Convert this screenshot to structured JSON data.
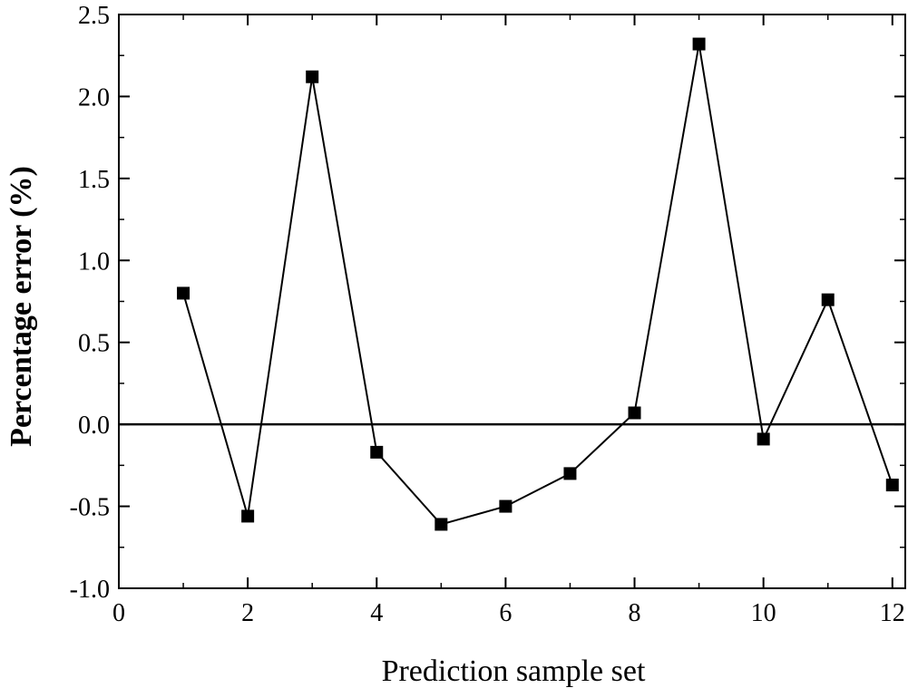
{
  "chart_data": {
    "type": "line",
    "title": "",
    "xlabel": "Prediction sample set",
    "ylabel": "Percentage error (%)",
    "xlim": [
      0,
      12.2
    ],
    "ylim": [
      -1.0,
      2.5
    ],
    "x_ticks": [
      0,
      2,
      4,
      6,
      8,
      10,
      12
    ],
    "x_tick_labels": [
      "0",
      "2",
      "4",
      "6",
      "8",
      "10",
      "12"
    ],
    "y_ticks": [
      -1.0,
      -0.5,
      0.0,
      0.5,
      1.0,
      1.5,
      2.0,
      2.5
    ],
    "y_tick_labels": [
      "-1.0",
      "-0.5",
      "0.0",
      "0.5",
      "1.0",
      "1.5",
      "2.0",
      "2.5"
    ],
    "reference_line_y": 0.0,
    "grid": false,
    "marker": "square",
    "color": "#000000",
    "series": [
      {
        "name": "Percentage error",
        "x": [
          1,
          2,
          3,
          4,
          5,
          6,
          7,
          8,
          9,
          10,
          11,
          12
        ],
        "values": [
          0.8,
          -0.56,
          2.12,
          -0.17,
          -0.61,
          -0.5,
          -0.3,
          0.07,
          2.32,
          -0.09,
          0.76,
          -0.37
        ]
      }
    ]
  }
}
